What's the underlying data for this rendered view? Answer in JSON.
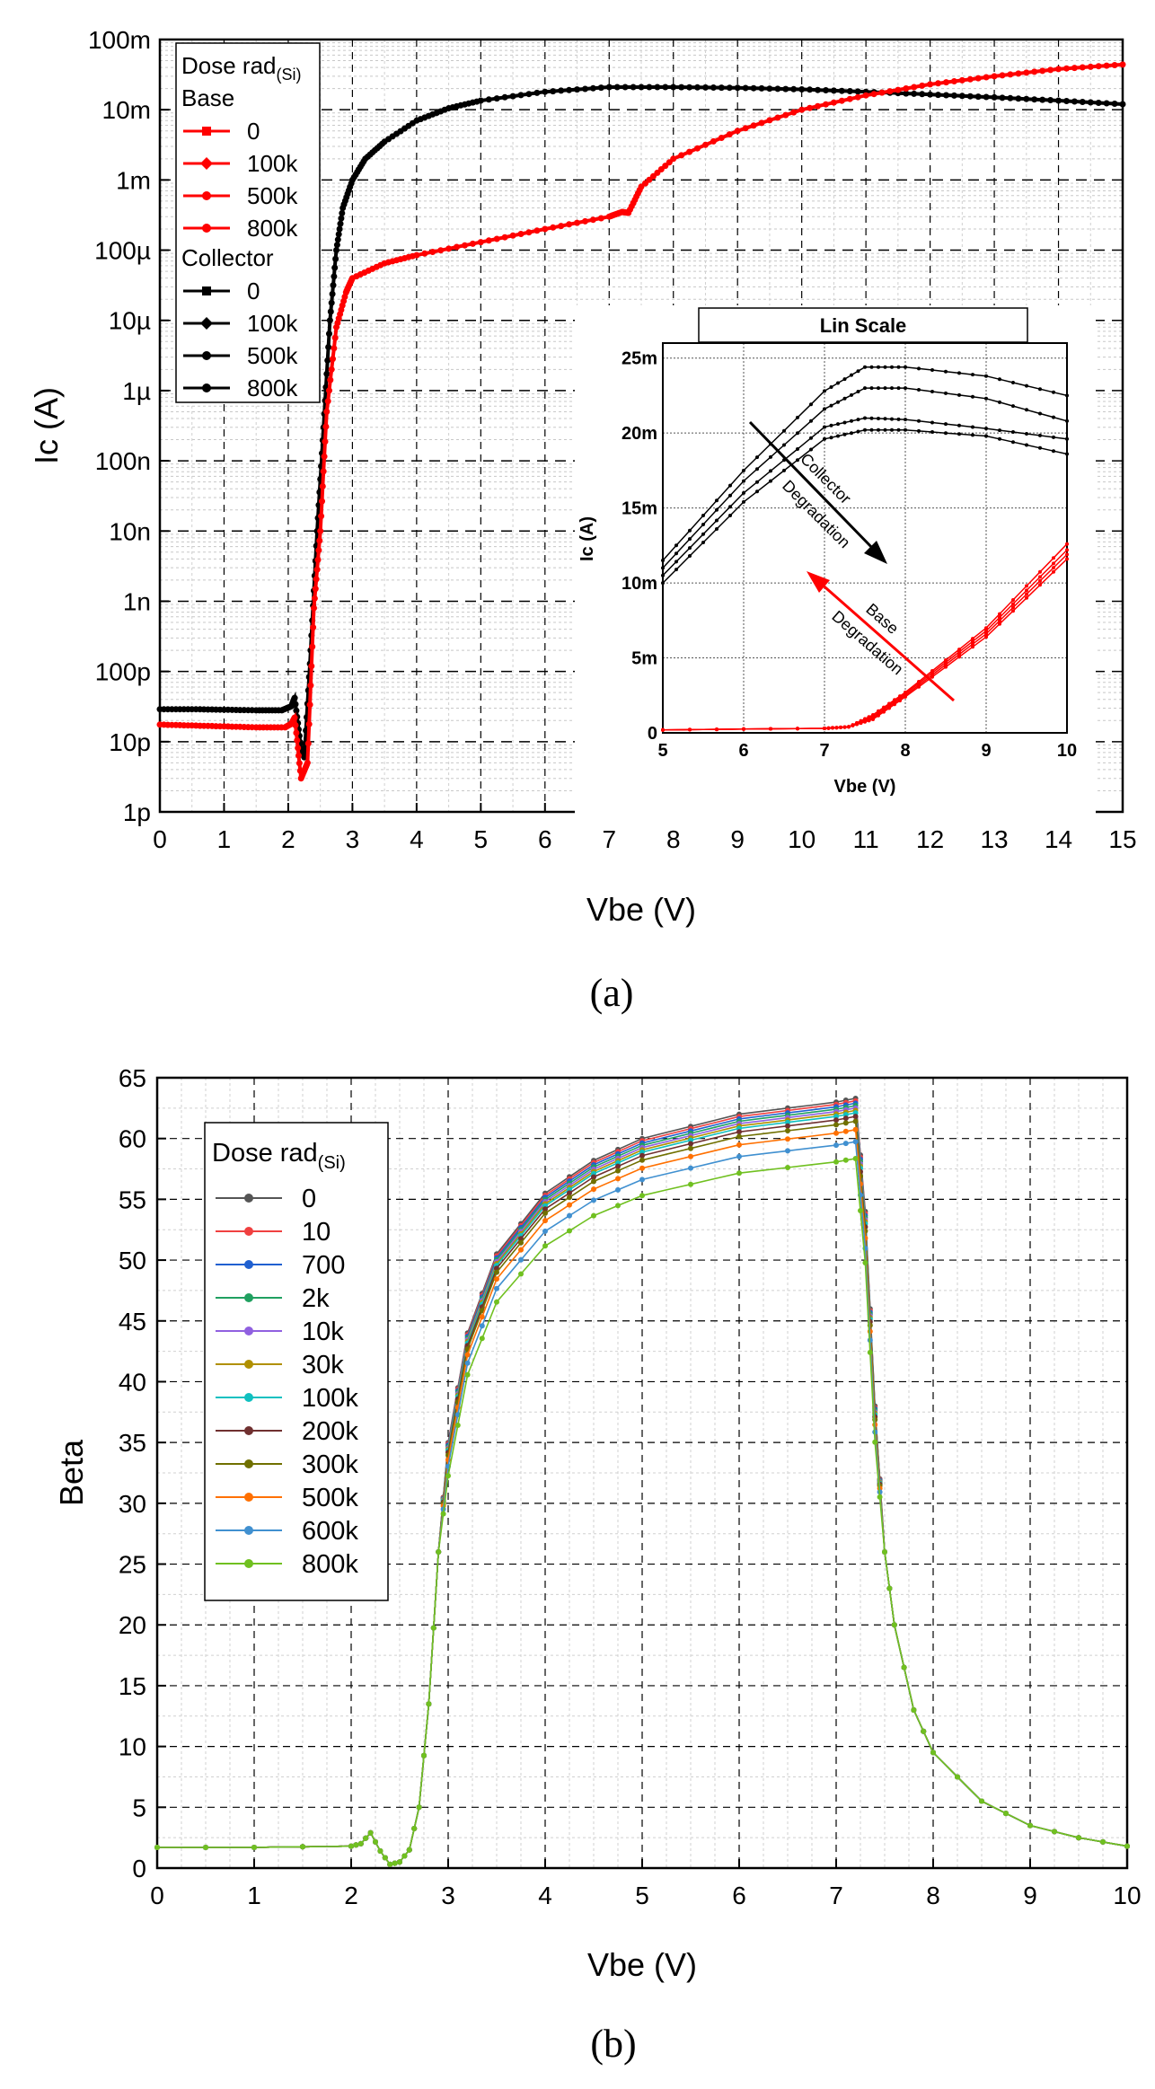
{
  "figure": {
    "caption_a": "(a)",
    "caption_b": "(b)"
  },
  "chart_data": [
    {
      "id": "a",
      "type": "line",
      "xlabel": "Vbe (V)",
      "ylabel": "Ic (A)",
      "xlim": [
        0,
        15
      ],
      "ylim_log10": [
        -12,
        -1
      ],
      "y_scale": "log",
      "x_ticks": [
        "0",
        "1",
        "2",
        "3",
        "4",
        "5",
        "6",
        "7",
        "8",
        "9",
        "10",
        "11",
        "12",
        "13",
        "14",
        "15"
      ],
      "y_ticks": [
        {
          "exp": -12,
          "label": "1p"
        },
        {
          "exp": -11,
          "label": "10p"
        },
        {
          "exp": -10,
          "label": "100p"
        },
        {
          "exp": -9,
          "label": "1n"
        },
        {
          "exp": -8,
          "label": "10n"
        },
        {
          "exp": -7,
          "label": "100n"
        },
        {
          "exp": -6,
          "label": "1µ"
        },
        {
          "exp": -5,
          "label": "10µ"
        },
        {
          "exp": -4,
          "label": "100µ"
        },
        {
          "exp": -3,
          "label": "1m"
        },
        {
          "exp": -2,
          "label": "10m"
        },
        {
          "exp": -1,
          "label": "100m"
        }
      ],
      "legend": {
        "title": "Dose rad",
        "title_sub": "(Si)",
        "group_base": "Base",
        "group_collector": "Collector",
        "base_entries": [
          "0",
          "100k",
          "500k",
          "800k"
        ],
        "collector_entries": [
          "0",
          "100k",
          "500k",
          "800k"
        ],
        "placement": "top-left"
      },
      "series": [
        {
          "name": "Collector",
          "color": "#000000",
          "points": [
            [
              0,
              2.9e-11
            ],
            [
              0.5,
              2.9e-11
            ],
            [
              1.0,
              2.85e-11
            ],
            [
              1.5,
              2.8e-11
            ],
            [
              1.9,
              2.8e-11
            ],
            [
              2.05,
              3.2e-11
            ],
            [
              2.1,
              4.2e-11
            ],
            [
              2.2,
              8e-12
            ],
            [
              2.25,
              6e-12
            ],
            [
              2.35,
              2e-10
            ],
            [
              2.45,
              1e-08
            ],
            [
              2.55,
              3e-07
            ],
            [
              2.65,
              1e-05
            ],
            [
              2.75,
              0.0001
            ],
            [
              2.85,
              0.0004
            ],
            [
              3.0,
              0.001
            ],
            [
              3.2,
              0.002
            ],
            [
              3.5,
              0.0035
            ],
            [
              4.0,
              0.007
            ],
            [
              4.5,
              0.0105
            ],
            [
              5.0,
              0.0135
            ],
            [
              6.0,
              0.018
            ],
            [
              7.0,
              0.021
            ],
            [
              8.0,
              0.021
            ],
            [
              9.0,
              0.0205
            ],
            [
              10.0,
              0.0195
            ],
            [
              11.0,
              0.018
            ],
            [
              12.0,
              0.0165
            ],
            [
              13.0,
              0.015
            ],
            [
              14.0,
              0.0135
            ],
            [
              15.0,
              0.012
            ]
          ]
        },
        {
          "name": "Base",
          "color": "#ff0000",
          "points": [
            [
              0,
              1.75e-11
            ],
            [
              0.5,
              1.7e-11
            ],
            [
              1.0,
              1.65e-11
            ],
            [
              1.5,
              1.6e-11
            ],
            [
              1.95,
              1.6e-11
            ],
            [
              2.05,
              1.8e-11
            ],
            [
              2.1,
              2.2e-11
            ],
            [
              2.2,
              3e-12
            ],
            [
              2.3,
              5e-12
            ],
            [
              2.4,
              8e-10
            ],
            [
              2.5,
              1e-08
            ],
            [
              2.6,
              5e-07
            ],
            [
              2.75,
              8e-06
            ],
            [
              2.9,
              2.5e-05
            ],
            [
              3.0,
              4e-05
            ],
            [
              3.5,
              6.5e-05
            ],
            [
              4.0,
              8.5e-05
            ],
            [
              5.0,
              0.00013
            ],
            [
              6.0,
              0.0002
            ],
            [
              7.0,
              0.0003
            ],
            [
              7.2,
              0.00035
            ],
            [
              7.3,
              0.00034
            ],
            [
              7.5,
              0.0008
            ],
            [
              8.0,
              0.002
            ],
            [
              9.0,
              0.005
            ],
            [
              10.0,
              0.01
            ],
            [
              11.0,
              0.016
            ],
            [
              12.0,
              0.023
            ],
            [
              13.0,
              0.03
            ],
            [
              14.0,
              0.038
            ],
            [
              15.0,
              0.044
            ]
          ]
        }
      ],
      "inset": {
        "title": "Lin Scale",
        "xlabel": "Vbe (V)",
        "ylabel": "Ic (A)",
        "xlim": [
          5,
          10
        ],
        "ylim_m": [
          0,
          26
        ],
        "x_ticks": [
          "5",
          "6",
          "7",
          "8",
          "9",
          "10"
        ],
        "y_ticks": [
          {
            "value": 0,
            "label": "0"
          },
          {
            "value": 5,
            "label": "5m"
          },
          {
            "value": 10,
            "label": "10m"
          },
          {
            "value": 15,
            "label": "15m"
          },
          {
            "value": 20,
            "label": "20m"
          },
          {
            "value": 25,
            "label": "25m"
          }
        ],
        "annotation_collector_1": "Collector",
        "annotation_collector_2": "Degradation",
        "annotation_base_1": "Base",
        "annotation_base_2": "Degradation",
        "collector_curves_mA": [
          [
            [
              5,
              11.5
            ],
            [
              6,
              17.5
            ],
            [
              7,
              22.8
            ],
            [
              7.5,
              24.4
            ],
            [
              8,
              24.4
            ],
            [
              9,
              23.8
            ],
            [
              10,
              22.5
            ]
          ],
          [
            [
              5,
              11.0
            ],
            [
              6,
              16.8
            ],
            [
              7,
              21.6
            ],
            [
              7.5,
              23.0
            ],
            [
              8,
              23.0
            ],
            [
              9,
              22.3
            ],
            [
              10,
              20.8
            ]
          ],
          [
            [
              5,
              10.5
            ],
            [
              6,
              16.0
            ],
            [
              7,
              20.4
            ],
            [
              7.5,
              21.0
            ],
            [
              8,
              20.9
            ],
            [
              9,
              20.3
            ],
            [
              10,
              19.6
            ]
          ],
          [
            [
              5,
              10.0
            ],
            [
              6,
              15.4
            ],
            [
              7,
              19.6
            ],
            [
              7.5,
              20.2
            ],
            [
              8,
              20.2
            ],
            [
              9,
              19.8
            ],
            [
              10,
              18.6
            ]
          ]
        ],
        "base_curves_mA": [
          [
            [
              5,
              0.2
            ],
            [
              7,
              0.3
            ],
            [
              7.3,
              0.4
            ],
            [
              7.6,
              1.2
            ],
            [
              8,
              2.7
            ],
            [
              9,
              7.0
            ],
            [
              10,
              12.6
            ]
          ],
          [
            [
              5,
              0.2
            ],
            [
              7,
              0.3
            ],
            [
              7.3,
              0.4
            ],
            [
              7.6,
              1.1
            ],
            [
              8,
              2.6
            ],
            [
              9,
              6.8
            ],
            [
              10,
              12.2
            ]
          ],
          [
            [
              5,
              0.2
            ],
            [
              7,
              0.3
            ],
            [
              7.3,
              0.4
            ],
            [
              7.6,
              1.0
            ],
            [
              8,
              2.5
            ],
            [
              9,
              6.6
            ],
            [
              10,
              11.9
            ]
          ],
          [
            [
              5,
              0.2
            ],
            [
              7,
              0.3
            ],
            [
              7.3,
              0.4
            ],
            [
              7.6,
              0.9
            ],
            [
              8,
              2.4
            ],
            [
              9,
              6.4
            ],
            [
              10,
              11.6
            ]
          ]
        ]
      }
    },
    {
      "id": "b",
      "type": "line",
      "xlabel": "Vbe (V)",
      "ylabel": "Beta",
      "xlim": [
        0,
        10
      ],
      "ylim": [
        0,
        65
      ],
      "x_ticks": [
        "0",
        "1",
        "2",
        "3",
        "4",
        "5",
        "6",
        "7",
        "8",
        "9",
        "10"
      ],
      "y_ticks": [
        "0",
        "5",
        "10",
        "15",
        "20",
        "25",
        "30",
        "35",
        "40",
        "45",
        "50",
        "55",
        "60",
        "65"
      ],
      "legend": {
        "title": "Dose rad",
        "title_sub": "(Si)",
        "placement": "top-left"
      },
      "series": [
        {
          "name": "0",
          "color": "#555555",
          "peak": 64.0
        },
        {
          "name": "10",
          "color": "#f04040",
          "peak": 63.8
        },
        {
          "name": "700",
          "color": "#2060d0",
          "peak": 63.6
        },
        {
          "name": "2k",
          "color": "#20a060",
          "peak": 63.4
        },
        {
          "name": "10k",
          "color": "#9060e0",
          "peak": 63.2
        },
        {
          "name": "30k",
          "color": "#b09000",
          "peak": 63.0
        },
        {
          "name": "100k",
          "color": "#10c0c0",
          "peak": 62.8
        },
        {
          "name": "200k",
          "color": "#703030",
          "peak": 62.5
        },
        {
          "name": "300k",
          "color": "#707000",
          "peak": 62.1
        },
        {
          "name": "500k",
          "color": "#ff7000",
          "peak": 61.4
        },
        {
          "name": "600k",
          "color": "#4090d0",
          "peak": 60.4
        },
        {
          "name": "800k",
          "color": "#70c020",
          "peak": 59.0
        }
      ],
      "shape_points": [
        [
          0,
          1.7
        ],
        [
          1.0,
          1.7
        ],
        [
          2.0,
          1.8
        ],
        [
          2.1,
          2.0
        ],
        [
          2.2,
          2.9
        ],
        [
          2.3,
          1.4
        ],
        [
          2.4,
          0.3
        ],
        [
          2.5,
          0.5
        ],
        [
          2.6,
          1.5
        ],
        [
          2.7,
          5.0
        ],
        [
          2.8,
          13.5
        ],
        [
          2.9,
          26.0
        ],
        [
          3.0,
          35.0
        ],
        [
          3.2,
          44.0
        ],
        [
          3.5,
          50.5
        ],
        [
          4.0,
          55.5
        ],
        [
          4.5,
          58.2
        ],
        [
          5.0,
          60.0
        ],
        [
          6.0,
          62.0
        ],
        [
          7.0,
          63.0
        ],
        [
          7.2,
          63.3
        ],
        [
          7.3,
          54.0
        ],
        [
          7.4,
          38.0
        ],
        [
          7.5,
          26.0
        ],
        [
          7.6,
          20.0
        ],
        [
          7.8,
          13.0
        ],
        [
          8.0,
          9.5
        ],
        [
          8.5,
          5.5
        ],
        [
          9.0,
          3.5
        ],
        [
          9.5,
          2.5
        ],
        [
          10.0,
          1.8
        ]
      ]
    }
  ]
}
